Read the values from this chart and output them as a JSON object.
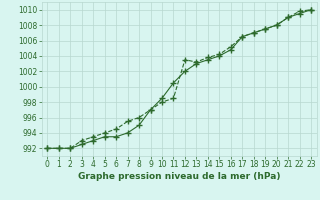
{
  "line1_x": [
    0,
    1,
    2,
    3,
    4,
    5,
    6,
    7,
    8,
    9,
    10,
    11,
    12,
    13,
    14,
    15,
    16,
    17,
    18,
    19,
    20,
    21,
    22,
    23
  ],
  "line1_y": [
    992,
    992,
    992,
    992.5,
    993,
    993.5,
    993.5,
    994,
    995,
    997,
    998.5,
    1000.5,
    1002,
    1003,
    1003.5,
    1004,
    1004.8,
    1006.5,
    1007,
    1007.5,
    1008,
    1009,
    1009.5,
    1010
  ],
  "line2_x": [
    0,
    1,
    2,
    3,
    4,
    5,
    6,
    7,
    8,
    9,
    10,
    11,
    12,
    13,
    14,
    15,
    16,
    17,
    18,
    19,
    20,
    21,
    22,
    23
  ],
  "line2_y": [
    992,
    992,
    992,
    993,
    993.5,
    994,
    994.5,
    995.5,
    996,
    997,
    998,
    998.5,
    1003.5,
    1003.2,
    1003.8,
    1004.2,
    1005.2,
    1006.5,
    1007,
    1007.5,
    1008,
    1009,
    1009.8,
    1010
  ],
  "ylim": [
    991,
    1011
  ],
  "xlim": [
    -0.5,
    23.5
  ],
  "yticks": [
    992,
    994,
    996,
    998,
    1000,
    1002,
    1004,
    1006,
    1008,
    1010
  ],
  "xticks": [
    0,
    1,
    2,
    3,
    4,
    5,
    6,
    7,
    8,
    9,
    10,
    11,
    12,
    13,
    14,
    15,
    16,
    17,
    18,
    19,
    20,
    21,
    22,
    23
  ],
  "line_color": "#2d6a2d",
  "bg_color": "#cceee8",
  "plot_bg": "#d8f5f0",
  "grid_color": "#b8d8d0",
  "xlabel": "Graphe pression niveau de la mer (hPa)",
  "xlabel_color": "#2d6a2d",
  "marker": "+",
  "markersize": 4,
  "linewidth": 0.8,
  "tick_fontsize": 5.5,
  "xlabel_fontsize": 6.5
}
